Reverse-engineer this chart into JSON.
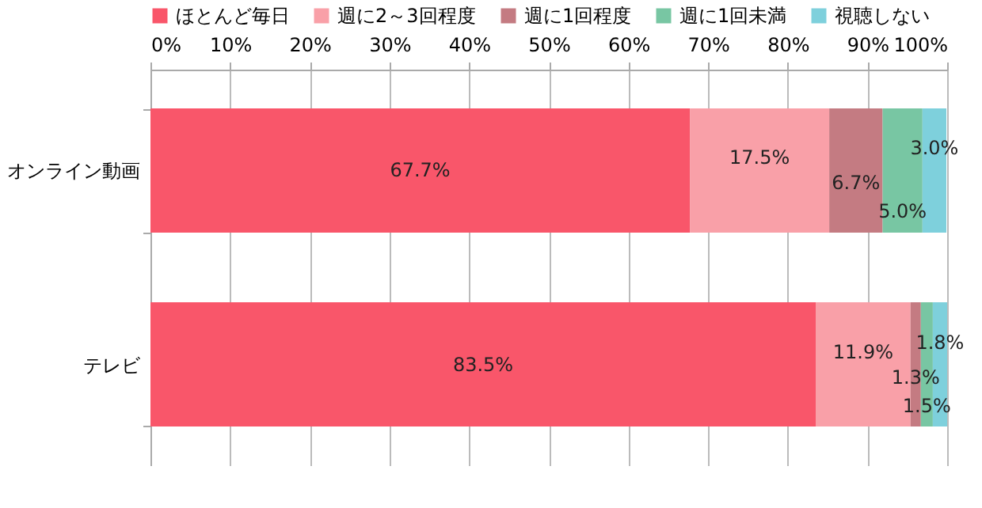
{
  "chart_data": {
    "type": "bar",
    "orientation": "horizontal",
    "stacked": true,
    "categories": [
      "オンライン動画",
      "テレビ"
    ],
    "series": [
      {
        "name": "ほとんど毎日",
        "color": "#f9566a",
        "values": [
          67.7,
          83.5
        ],
        "value_labels": [
          "67.7%",
          "83.5%"
        ]
      },
      {
        "name": "週に2～3回程度",
        "color": "#f9a0a8",
        "values": [
          17.5,
          11.9
        ],
        "value_labels": [
          "17.5%",
          "11.9%"
        ]
      },
      {
        "name": "週に1回程度",
        "color": "#c47b82",
        "values": [
          6.7,
          1.3
        ],
        "value_labels": [
          "6.7%",
          "1.3%"
        ]
      },
      {
        "name": "週に1回未満",
        "color": "#78c6a3",
        "values": [
          5.0,
          1.5
        ],
        "value_labels": [
          "5.0%",
          "1.5%"
        ]
      },
      {
        "name": "視聴しない",
        "color": "#7ed0dc",
        "values": [
          3.0,
          1.8
        ],
        "value_labels": [
          "3.0%",
          "1.8%"
        ]
      }
    ],
    "xlim": [
      0,
      100
    ],
    "xticks": [
      {
        "value": 0,
        "label": "0%"
      },
      {
        "value": 10,
        "label": "10%"
      },
      {
        "value": 20,
        "label": "20%"
      },
      {
        "value": 30,
        "label": "30%"
      },
      {
        "value": 40,
        "label": "40%"
      },
      {
        "value": 50,
        "label": "50%"
      },
      {
        "value": 60,
        "label": "60%"
      },
      {
        "value": 70,
        "label": "70%"
      },
      {
        "value": 80,
        "label": "80%"
      },
      {
        "value": 90,
        "label": "90%"
      },
      {
        "value": 100,
        "label": "100%"
      }
    ],
    "grid": "x",
    "legend": "top"
  }
}
